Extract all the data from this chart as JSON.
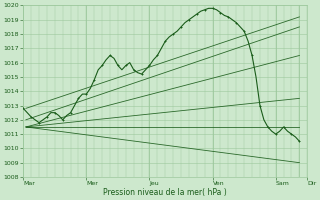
{
  "bg_color": "#cde8cd",
  "grid_color": "#9dc89d",
  "line_color": "#1a5c1a",
  "xlabel": "Pression niveau de la mer( hPa )",
  "ylim": [
    1008,
    1020
  ],
  "yticks": [
    1008,
    1009,
    1010,
    1011,
    1012,
    1013,
    1014,
    1015,
    1016,
    1017,
    1018,
    1019,
    1020
  ],
  "xtick_labels": [
    "Mar",
    "Mer",
    "Jeu",
    "Ven",
    "Sam",
    "Dir"
  ],
  "xtick_positions": [
    0,
    48,
    96,
    144,
    192,
    216
  ],
  "vlines": [
    0,
    48,
    96,
    144,
    192,
    210
  ],
  "total_hours": 216,
  "fan_lines": [
    {
      "x": [
        2,
        210
      ],
      "y": [
        1012.8,
        1019.2
      ]
    },
    {
      "x": [
        2,
        210
      ],
      "y": [
        1012.0,
        1018.5
      ]
    },
    {
      "x": [
        2,
        210
      ],
      "y": [
        1011.5,
        1016.5
      ]
    },
    {
      "x": [
        2,
        210
      ],
      "y": [
        1011.5,
        1013.5
      ]
    },
    {
      "x": [
        2,
        210
      ],
      "y": [
        1011.5,
        1011.5
      ]
    },
    {
      "x": [
        2,
        210
      ],
      "y": [
        1011.5,
        1009.0
      ]
    }
  ],
  "detail_line": {
    "x": [
      0,
      3,
      6,
      9,
      12,
      15,
      18,
      21,
      24,
      27,
      30,
      33,
      36,
      39,
      42,
      45,
      48,
      51,
      54,
      57,
      60,
      63,
      66,
      69,
      72,
      75,
      78,
      81,
      84,
      87,
      90,
      93,
      96,
      99,
      102,
      105,
      108,
      111,
      114,
      117,
      120,
      123,
      126,
      129,
      132,
      135,
      138,
      141,
      144,
      147,
      150,
      153,
      156,
      159,
      162,
      165,
      168,
      171,
      174,
      177,
      180,
      183,
      186,
      189,
      192,
      195,
      198,
      201,
      204,
      207,
      210
    ],
    "y": [
      1012.8,
      1012.5,
      1012.2,
      1012.0,
      1011.8,
      1012.0,
      1012.2,
      1012.5,
      1012.5,
      1012.3,
      1012.0,
      1012.3,
      1012.5,
      1013.0,
      1013.5,
      1013.8,
      1013.8,
      1014.2,
      1014.8,
      1015.5,
      1015.8,
      1016.2,
      1016.5,
      1016.3,
      1015.8,
      1015.5,
      1015.8,
      1016.0,
      1015.5,
      1015.3,
      1015.2,
      1015.5,
      1015.8,
      1016.2,
      1016.5,
      1017.0,
      1017.5,
      1017.8,
      1018.0,
      1018.2,
      1018.5,
      1018.8,
      1019.0,
      1019.2,
      1019.4,
      1019.6,
      1019.7,
      1019.8,
      1019.8,
      1019.7,
      1019.5,
      1019.3,
      1019.2,
      1019.0,
      1018.8,
      1018.5,
      1018.2,
      1017.5,
      1016.5,
      1015.0,
      1013.0,
      1012.0,
      1011.5,
      1011.2,
      1011.0,
      1011.2,
      1011.5,
      1011.2,
      1011.0,
      1010.8,
      1010.5
    ]
  }
}
